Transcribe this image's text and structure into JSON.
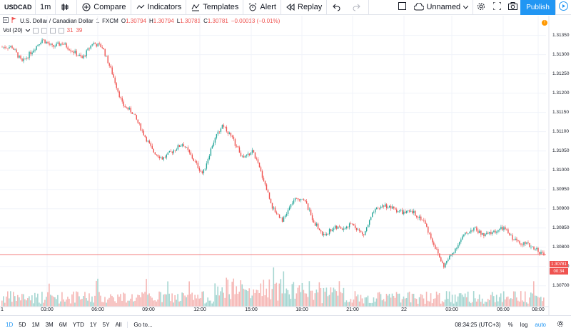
{
  "toolbar": {
    "symbol": "USDCAD",
    "interval": "1m",
    "compare": "Compare",
    "indicators": "Indicators",
    "templates": "Templates",
    "alert": "Alert",
    "replay": "Replay",
    "layout_name": "Unnamed",
    "publish": "Publish"
  },
  "legend": {
    "title": "U.S. Dollar / Canadian Dollar",
    "interval": "1",
    "exchange": "FXCM",
    "open_label": "O",
    "open": "1.30794",
    "high_label": "H",
    "high": "1.30794",
    "low_label": "L",
    "low": "1.30781",
    "close_label": "C",
    "close": "1.30781",
    "change": "−0.00013 (−0.01%)",
    "vol_label": "Vol (20)",
    "vol_value1": "31",
    "vol_value2": "39"
  },
  "price_scale": [
    "1.31350",
    "1.31300",
    "1.31250",
    "1.31200",
    "1.31150",
    "1.31100",
    "1.31050",
    "1.31000",
    "1.30950",
    "1.30900",
    "1.30850",
    "1.30800",
    "1.30750",
    "1.30700"
  ],
  "current_price": "1.30781",
  "countdown": "00:34",
  "time_axis": [
    "03:00",
    "06:00",
    "09:00",
    "12:00",
    "15:00",
    "18:00",
    "21:00",
    "22",
    "03:00",
    "06:00",
    "08:00"
  ],
  "time_axis_first": "1",
  "ranges": [
    "1D",
    "5D",
    "1M",
    "3M",
    "6M",
    "YTD",
    "1Y",
    "5Y",
    "All"
  ],
  "goto": "Go to...",
  "clock": "08:34:25 (UTC+3)",
  "scale_percent": "%",
  "scale_log": "log",
  "scale_auto": "auto",
  "colors": {
    "up": "#26a69a",
    "down": "#ef5350",
    "accent": "#2196f3",
    "vol_up": "#a5d6d1",
    "vol_down": "#f5b7b5"
  },
  "chart_data": {
    "type": "candlestick",
    "y_range": [
      1.3067,
      1.3139
    ],
    "x": [
      "00:30",
      "01:30",
      "02:30",
      "03:30",
      "04:30",
      "05:30",
      "06:30",
      "07:30",
      "08:30",
      "09:30",
      "10:30",
      "11:00",
      "11:30",
      "12:00",
      "12:30",
      "13:00",
      "13:30",
      "14:00",
      "14:30",
      "15:00",
      "15:30",
      "16:00",
      "16:30",
      "17:00",
      "17:30",
      "18:00",
      "18:30",
      "19:00",
      "19:30",
      "20:00",
      "20:30",
      "21:00",
      "21:30",
      "22:00",
      "22:30",
      "23:00",
      "23:30",
      "00:00",
      "00:30",
      "01:00",
      "01:30",
      "02:00",
      "02:30",
      "03:00",
      "03:30",
      "04:00",
      "04:30",
      "05:00",
      "05:30",
      "06:00",
      "06:30",
      "07:00",
      "07:30",
      "08:00",
      "08:30"
    ],
    "close": [
      1.3132,
      1.3132,
      1.3128,
      1.3131,
      1.3134,
      1.3132,
      1.3133,
      1.3131,
      1.3129,
      1.3133,
      1.3132,
      1.3125,
      1.3117,
      1.3115,
      1.311,
      1.3105,
      1.3103,
      1.3105,
      1.3107,
      1.3103,
      1.3099,
      1.3107,
      1.3112,
      1.3108,
      1.3103,
      1.3105,
      1.3098,
      1.309,
      1.3087,
      1.3092,
      1.3093,
      1.3087,
      1.3083,
      1.3085,
      1.3085,
      1.3086,
      1.3083,
      1.3089,
      1.3091,
      1.309,
      1.3089,
      1.3089,
      1.3087,
      1.3081,
      1.3075,
      1.3079,
      1.3083,
      1.3085,
      1.3083,
      1.3084,
      1.3085,
      1.3082,
      1.3081,
      1.308,
      1.3078
    ]
  }
}
